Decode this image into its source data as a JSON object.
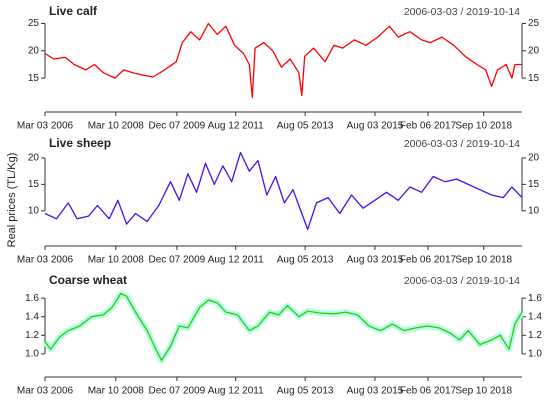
{
  "ylabel": "Real prices (TL/Kg)",
  "chart_data": [
    {
      "type": "line",
      "title": "Live calf",
      "subtitle": "2006-03-03 / 2019-10-14",
      "xlim": [
        "2006-03-03",
        "2019-10-14"
      ],
      "xticks": [
        {
          "value": "2006-03-03",
          "label": "Mar 03 2006"
        },
        {
          "value": "2008-03-10",
          "label": "Mar 10 2008"
        },
        {
          "value": "2009-12-07",
          "label": "Dec 07 2009"
        },
        {
          "value": "2011-08-12",
          "label": "Aug 12 2011"
        },
        {
          "value": "2013-08-05",
          "label": "Aug 05 2013"
        },
        {
          "value": "2015-08-03",
          "label": "Aug 03 2015"
        },
        {
          "value": "2017-02-06",
          "label": "Feb 06 2017"
        },
        {
          "value": "2018-09-10",
          "label": "Sep 10 2018"
        }
      ],
      "ylim": [
        11,
        26
      ],
      "yticks": [
        15,
        20,
        25
      ],
      "x": [
        "2006-03-03",
        "2006-06-01",
        "2006-10-01",
        "2007-01-01",
        "2007-05-01",
        "2007-08-01",
        "2007-11-01",
        "2008-03-01",
        "2008-06-01",
        "2008-09-01",
        "2009-01-01",
        "2009-04-01",
        "2009-08-01",
        "2009-12-01",
        "2010-02-01",
        "2010-05-01",
        "2010-08-01",
        "2010-11-01",
        "2011-02-01",
        "2011-05-01",
        "2011-08-01",
        "2011-11-01",
        "2012-01-01",
        "2012-02-01",
        "2012-03-01",
        "2012-06-01",
        "2012-09-01",
        "2012-12-01",
        "2013-03-01",
        "2013-06-01",
        "2013-07-01",
        "2013-08-01",
        "2013-11-01",
        "2014-03-01",
        "2014-06-01",
        "2014-09-01",
        "2015-01-01",
        "2015-05-01",
        "2015-09-01",
        "2016-01-01",
        "2016-04-01",
        "2016-08-01",
        "2016-12-01",
        "2017-03-01",
        "2017-07-01",
        "2017-11-01",
        "2018-03-01",
        "2018-07-01",
        "2018-10-01",
        "2018-12-01",
        "2019-02-01",
        "2019-05-01",
        "2019-07-01",
        "2019-08-01",
        "2019-10-14"
      ],
      "series": [
        {
          "color": "#ff0000",
          "values": [
            19.5,
            18.5,
            18.8,
            17.5,
            16.5,
            17.5,
            16.0,
            15.0,
            16.5,
            16.0,
            15.5,
            15.2,
            16.5,
            18.0,
            21.5,
            23.5,
            22.0,
            25.0,
            23.0,
            24.5,
            21.0,
            19.5,
            17.5,
            11.5,
            20.5,
            21.5,
            20.0,
            17.0,
            18.5,
            16.0,
            11.8,
            19.0,
            20.5,
            18.0,
            21.0,
            20.5,
            22.0,
            21.0,
            22.5,
            24.5,
            22.5,
            23.5,
            22.0,
            21.5,
            22.5,
            21.0,
            19.0,
            17.5,
            16.5,
            13.5,
            16.5,
            17.5,
            15.0,
            17.5,
            17.5
          ]
        }
      ]
    },
    {
      "type": "line",
      "title": "Live sheep",
      "subtitle": "2006-03-03 / 2019-10-14",
      "xlim": [
        "2006-03-03",
        "2019-10-14"
      ],
      "xticks": [
        {
          "value": "2006-03-03",
          "label": "Mar 03 2006"
        },
        {
          "value": "2008-03-10",
          "label": "Mar 10 2008"
        },
        {
          "value": "2009-12-07",
          "label": "Dec 07 2009"
        },
        {
          "value": "2011-08-12",
          "label": "Aug 12 2011"
        },
        {
          "value": "2013-08-05",
          "label": "Aug 05 2013"
        },
        {
          "value": "2015-08-03",
          "label": "Aug 03 2015"
        },
        {
          "value": "2017-02-06",
          "label": "Feb 06 2017"
        },
        {
          "value": "2018-09-10",
          "label": "Sep 10 2018"
        }
      ],
      "ylim": [
        6,
        21.5
      ],
      "yticks": [
        10,
        15,
        20
      ],
      "x": [
        "2006-03-03",
        "2006-07-01",
        "2006-11-01",
        "2007-02-01",
        "2007-06-01",
        "2007-09-01",
        "2008-01-01",
        "2008-04-01",
        "2008-07-01",
        "2008-10-01",
        "2009-02-01",
        "2009-06-01",
        "2009-10-01",
        "2010-01-01",
        "2010-04-01",
        "2010-07-01",
        "2010-10-01",
        "2011-01-01",
        "2011-04-01",
        "2011-07-01",
        "2011-10-01",
        "2012-01-01",
        "2012-04-01",
        "2012-07-01",
        "2012-10-01",
        "2013-01-01",
        "2013-04-01",
        "2013-07-01",
        "2013-09-01",
        "2013-12-01",
        "2014-04-01",
        "2014-08-01",
        "2014-12-01",
        "2015-04-01",
        "2015-08-01",
        "2015-12-01",
        "2016-04-01",
        "2016-08-01",
        "2016-12-01",
        "2017-04-01",
        "2017-08-01",
        "2017-12-01",
        "2018-04-01",
        "2018-08-01",
        "2018-12-01",
        "2019-04-01",
        "2019-07-01",
        "2019-10-14"
      ],
      "series": [
        {
          "color": "#4a0cf0",
          "values": [
            9.5,
            8.5,
            11.5,
            8.5,
            9.0,
            11.0,
            8.5,
            12.0,
            7.5,
            9.5,
            8.0,
            11.0,
            15.5,
            12.0,
            17.0,
            13.5,
            19.0,
            15.0,
            18.5,
            15.5,
            21.0,
            17.5,
            19.5,
            13.0,
            16.5,
            11.5,
            14.0,
            9.5,
            6.5,
            11.5,
            12.5,
            9.5,
            13.0,
            10.5,
            12.0,
            13.5,
            12.0,
            14.5,
            13.5,
            16.5,
            15.5,
            16.0,
            15.0,
            14.0,
            13.0,
            12.5,
            14.5,
            12.5
          ]
        }
      ]
    },
    {
      "type": "line",
      "title": "Coarse wheat",
      "subtitle": "2006-03-03 / 2019-10-14",
      "xlim": [
        "2006-03-03",
        "2019-10-14"
      ],
      "xticks": [
        {
          "value": "2006-03-03",
          "label": "Mar 03 2006"
        },
        {
          "value": "2008-03-10",
          "label": "Mar 10 2008"
        },
        {
          "value": "2009-12-07",
          "label": "Dec 07 2009"
        },
        {
          "value": "2011-08-12",
          "label": "Aug 12 2011"
        },
        {
          "value": "2013-08-05",
          "label": "Aug 05 2013"
        },
        {
          "value": "2015-08-03",
          "label": "Aug 03 2015"
        },
        {
          "value": "2017-02-06",
          "label": "Feb 06 2017"
        },
        {
          "value": "2018-09-10",
          "label": "Sep 10 2018"
        }
      ],
      "ylim": [
        0.88,
        1.72
      ],
      "yticks": [
        {
          "value": 1.0,
          "label": "1.0"
        },
        1.2,
        1.4,
        1.6
      ],
      "x": [
        "2006-03-03",
        "2006-05-01",
        "2006-08-01",
        "2006-11-01",
        "2007-03-01",
        "2007-07-01",
        "2007-11-01",
        "2008-02-01",
        "2008-05-01",
        "2008-07-01",
        "2008-10-01",
        "2009-02-01",
        "2009-05-01",
        "2009-07-01",
        "2009-10-01",
        "2010-01-01",
        "2010-04-01",
        "2010-08-01",
        "2010-11-01",
        "2011-02-01",
        "2011-05-01",
        "2011-09-01",
        "2012-01-01",
        "2012-04-01",
        "2012-08-01",
        "2012-11-01",
        "2013-02-01",
        "2013-06-01",
        "2013-09-01",
        "2014-01-01",
        "2014-06-01",
        "2014-10-01",
        "2015-02-01",
        "2015-06-01",
        "2015-10-01",
        "2016-02-01",
        "2016-06-01",
        "2016-10-01",
        "2017-02-01",
        "2017-06-01",
        "2017-10-01",
        "2018-01-01",
        "2018-04-01",
        "2018-08-01",
        "2018-12-01",
        "2019-03-01",
        "2019-06-01",
        "2019-08-01",
        "2019-10-14"
      ],
      "halo": "#b4fbe8",
      "series": [
        {
          "color": "#33cc00",
          "values": [
            1.13,
            1.05,
            1.18,
            1.25,
            1.3,
            1.4,
            1.42,
            1.5,
            1.65,
            1.62,
            1.45,
            1.25,
            1.05,
            0.93,
            1.08,
            1.3,
            1.28,
            1.5,
            1.58,
            1.55,
            1.45,
            1.42,
            1.25,
            1.3,
            1.45,
            1.42,
            1.52,
            1.4,
            1.46,
            1.44,
            1.43,
            1.45,
            1.42,
            1.3,
            1.25,
            1.32,
            1.25,
            1.28,
            1.3,
            1.28,
            1.22,
            1.15,
            1.25,
            1.1,
            1.15,
            1.2,
            1.05,
            1.32,
            1.45
          ]
        }
      ]
    }
  ]
}
